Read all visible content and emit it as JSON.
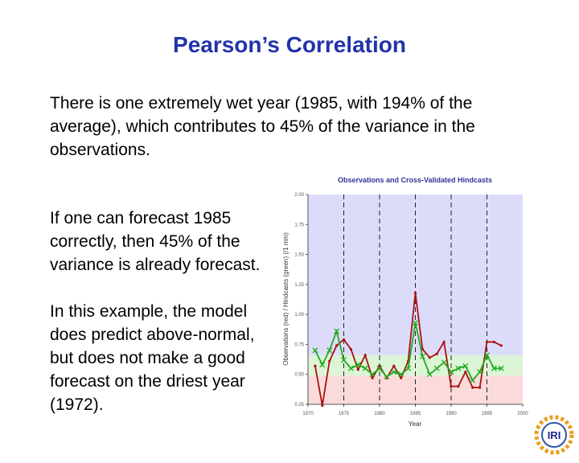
{
  "title": "Pearson’s Correlation",
  "paragraphs": [
    "There is one extremely wet year (1985, with 194% of the average), which contributes to 45% of the variance in the observations.",
    "If one can forecast 1985 correctly, then 45% of the variance is already forecast.",
    "In this example, the model does predict above-normal, but does not make a good forecast on the driest year (1972)."
  ],
  "logo": "IRI",
  "chart_data": {
    "type": "line",
    "title": "Observations and Cross-Validated Hindcasts",
    "x_label": "Year",
    "y_label": "Observations (red) / Hindcasts (green) (/1 mm)",
    "x": [
      1971,
      1972,
      1973,
      1974,
      1975,
      1976,
      1977,
      1978,
      1979,
      1980,
      1981,
      1982,
      1983,
      1984,
      1985,
      1986,
      1987,
      1988,
      1989,
      1990,
      1991,
      1992,
      1993,
      1994,
      1995,
      1996,
      1997
    ],
    "series": [
      {
        "name": "Observations",
        "color": "#aa1111",
        "marker": "dot",
        "values": [
          0.57,
          0.24,
          0.61,
          0.74,
          0.79,
          0.71,
          0.54,
          0.66,
          0.47,
          0.57,
          0.47,
          0.57,
          0.47,
          0.61,
          1.18,
          0.71,
          0.64,
          0.67,
          0.77,
          0.4,
          0.4,
          0.52,
          0.39,
          0.39,
          0.77,
          0.77,
          0.74
        ]
      },
      {
        "name": "Hindcasts",
        "color": "#22aa22",
        "marker": "cross",
        "values": [
          0.7,
          0.58,
          0.7,
          0.86,
          0.62,
          0.55,
          0.58,
          0.55,
          0.5,
          0.55,
          0.48,
          0.52,
          0.5,
          0.55,
          0.93,
          0.65,
          0.5,
          0.55,
          0.6,
          0.52,
          0.55,
          0.57,
          0.45,
          0.52,
          0.66,
          0.55,
          0.55
        ]
      }
    ],
    "bands": [
      {
        "from": 0.25,
        "to": 0.49,
        "color": "#fadada"
      },
      {
        "from": 0.49,
        "to": 0.66,
        "color": "#dcf5d6"
      },
      {
        "from": 0.66,
        "to": 2.0,
        "color": "#dcdcfa"
      }
    ],
    "xlim": [
      1970,
      2000
    ],
    "xticks": [
      1970,
      1975,
      1980,
      1985,
      1990,
      1995,
      2000
    ],
    "ylim": [
      0.25,
      2.0
    ],
    "yticks": [
      0.25,
      {
        "value": 0.5,
        "label": "0.50"
      },
      0.75,
      {
        "value": 1.0,
        "label": "1.00"
      },
      1.25,
      {
        "value": 1.5,
        "label": "1.50"
      },
      1.75,
      {
        "value": 2.0,
        "label": "2.00"
      }
    ],
    "grid": "x-dashed"
  }
}
